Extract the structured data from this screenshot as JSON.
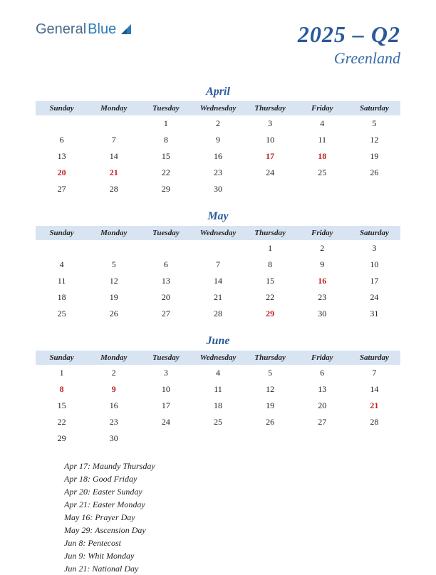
{
  "logo": {
    "part1": "General",
    "part2": "Blue"
  },
  "title": "2025 – Q2",
  "region": "Greenland",
  "colors": {
    "header_bg": "#d8e4f2",
    "title_color": "#2a5a9a",
    "holiday_color": "#c02020",
    "text_color": "#222222"
  },
  "day_headers": [
    "Sunday",
    "Monday",
    "Tuesday",
    "Wednesday",
    "Thursday",
    "Friday",
    "Saturday"
  ],
  "months": [
    {
      "name": "April",
      "weeks": [
        [
          "",
          "",
          "1",
          "2",
          "3",
          "4",
          "5"
        ],
        [
          "6",
          "7",
          "8",
          "9",
          "10",
          "11",
          "12"
        ],
        [
          "13",
          "14",
          "15",
          "16",
          "17",
          "18",
          "19"
        ],
        [
          "20",
          "21",
          "22",
          "23",
          "24",
          "25",
          "26"
        ],
        [
          "27",
          "28",
          "29",
          "30",
          "",
          "",
          ""
        ]
      ],
      "holidays": [
        "17",
        "18",
        "20",
        "21"
      ]
    },
    {
      "name": "May",
      "weeks": [
        [
          "",
          "",
          "",
          "",
          "1",
          "2",
          "3"
        ],
        [
          "4",
          "5",
          "6",
          "7",
          "8",
          "9",
          "10"
        ],
        [
          "11",
          "12",
          "13",
          "14",
          "15",
          "16",
          "17"
        ],
        [
          "18",
          "19",
          "20",
          "21",
          "22",
          "23",
          "24"
        ],
        [
          "25",
          "26",
          "27",
          "28",
          "29",
          "30",
          "31"
        ]
      ],
      "holidays": [
        "16",
        "29"
      ]
    },
    {
      "name": "June",
      "weeks": [
        [
          "1",
          "2",
          "3",
          "4",
          "5",
          "6",
          "7"
        ],
        [
          "8",
          "9",
          "10",
          "11",
          "12",
          "13",
          "14"
        ],
        [
          "15",
          "16",
          "17",
          "18",
          "19",
          "20",
          "21"
        ],
        [
          "22",
          "23",
          "24",
          "25",
          "26",
          "27",
          "28"
        ],
        [
          "29",
          "30",
          "",
          "",
          "",
          "",
          ""
        ]
      ],
      "holidays": [
        "8",
        "9",
        "21"
      ]
    }
  ],
  "holiday_list": [
    "Apr 17: Maundy Thursday",
    "Apr 18: Good Friday",
    "Apr 20: Easter Sunday",
    "Apr 21: Easter Monday",
    "May 16: Prayer Day",
    "May 29: Ascension Day",
    "Jun 8: Pentecost",
    "Jun 9: Whit Monday",
    "Jun 21: National Day"
  ]
}
